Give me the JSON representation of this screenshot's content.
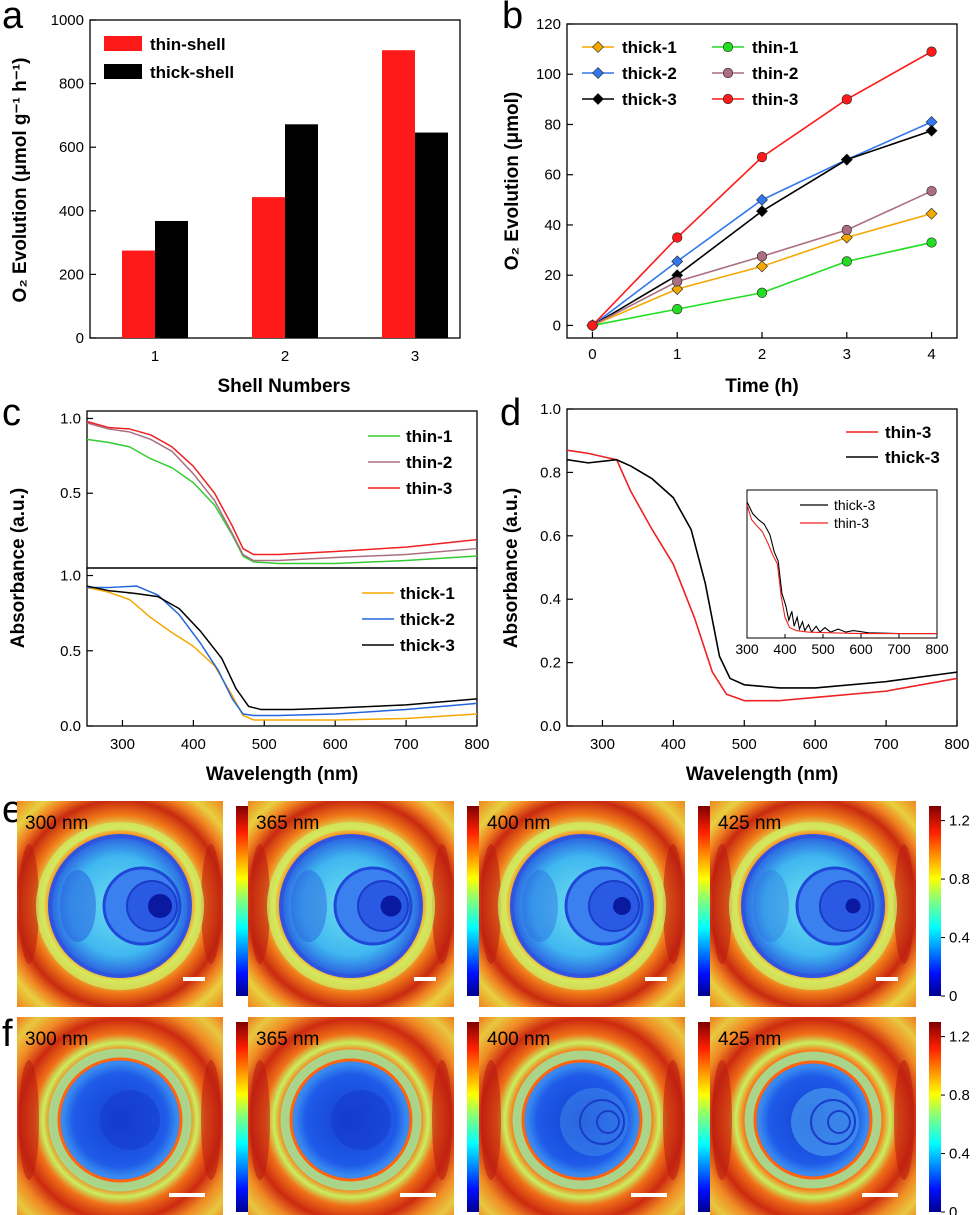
{
  "panel_labels": [
    "a",
    "b",
    "c",
    "d",
    "e",
    "f"
  ],
  "chart_data": [
    {
      "panel": "a",
      "type": "bar",
      "xlabel": "Shell Numbers",
      "ylabel": "O₂ Evolution (μmol g⁻¹ h⁻¹)",
      "categories": [
        "1",
        "2",
        "3"
      ],
      "ylim": [
        0,
        1000
      ],
      "yticks": [
        "0",
        "200",
        "400",
        "600",
        "800",
        "1000"
      ],
      "legend_position": "top-left",
      "series": [
        {
          "name": "thin-shell",
          "color": "#ff1a1a",
          "values": [
            275,
            443,
            905
          ]
        },
        {
          "name": "thick-shell",
          "color": "#000000",
          "values": [
            368,
            672,
            646
          ]
        }
      ]
    },
    {
      "panel": "b",
      "type": "line",
      "xlabel": "Time (h)",
      "ylabel": "O₂ Evolution (μmol)",
      "x": [
        0,
        1,
        2,
        3,
        4
      ],
      "xlim": [
        -0.3,
        4.3
      ],
      "ylim": [
        -5,
        120
      ],
      "xticks": [
        "0",
        "1",
        "2",
        "3",
        "4"
      ],
      "yticks": [
        "0",
        "20",
        "40",
        "60",
        "80",
        "100",
        "120"
      ],
      "legend_position": "top-left",
      "series": [
        {
          "name": "thick-1",
          "color": "#f5a800",
          "marker": "diamond",
          "values": [
            0,
            14.5,
            23.5,
            35,
            44.5
          ]
        },
        {
          "name": "thick-2",
          "color": "#3377ee",
          "marker": "diamond",
          "values": [
            0,
            25.5,
            50,
            66,
            81
          ]
        },
        {
          "name": "thick-3",
          "color": "#000000",
          "marker": "diamond",
          "values": [
            0,
            20,
            45.5,
            66,
            77.5
          ]
        },
        {
          "name": "thin-1",
          "color": "#22dd22",
          "marker": "circle",
          "values": [
            0,
            6.5,
            13,
            25.5,
            33
          ]
        },
        {
          "name": "thin-2",
          "color": "#aa6e80",
          "marker": "circle",
          "values": [
            0,
            17.5,
            27.5,
            38,
            53.5
          ]
        },
        {
          "name": "thin-3",
          "color": "#ff1a1a",
          "marker": "circle",
          "values": [
            0,
            35,
            67,
            90,
            109
          ]
        }
      ]
    },
    {
      "panel": "c",
      "type": "line",
      "xlabel": "Wavelength (nm)",
      "ylabel": "Absorbance (a.u.)",
      "xlim": [
        250,
        800
      ],
      "xticks": [
        "300",
        "400",
        "500",
        "600",
        "700",
        "800"
      ],
      "top": {
        "yticks": [
          "0.5",
          "1.0"
        ],
        "ylim": [
          0.0,
          1.05
        ],
        "series": [
          {
            "name": "thin-1",
            "color": "#33cc33",
            "points": [
              [
                250,
                0.86
              ],
              [
                280,
                0.84
              ],
              [
                310,
                0.81
              ],
              [
                340,
                0.73
              ],
              [
                370,
                0.67
              ],
              [
                400,
                0.57
              ],
              [
                430,
                0.42
              ],
              [
                455,
                0.22
              ],
              [
                470,
                0.08
              ],
              [
                485,
                0.04
              ],
              [
                520,
                0.03
              ],
              [
                600,
                0.03
              ],
              [
                700,
                0.05
              ],
              [
                800,
                0.08
              ]
            ]
          },
          {
            "name": "thin-2",
            "color": "#aa6e80",
            "points": [
              [
                250,
                0.97
              ],
              [
                280,
                0.93
              ],
              [
                310,
                0.91
              ],
              [
                340,
                0.86
              ],
              [
                370,
                0.78
              ],
              [
                400,
                0.63
              ],
              [
                430,
                0.45
              ],
              [
                455,
                0.23
              ],
              [
                470,
                0.09
              ],
              [
                485,
                0.05
              ],
              [
                520,
                0.05
              ],
              [
                600,
                0.07
              ],
              [
                700,
                0.09
              ],
              [
                800,
                0.13
              ]
            ]
          },
          {
            "name": "thin-3",
            "color": "#ee2222",
            "points": [
              [
                250,
                0.98
              ],
              [
                280,
                0.94
              ],
              [
                310,
                0.93
              ],
              [
                340,
                0.89
              ],
              [
                370,
                0.81
              ],
              [
                400,
                0.68
              ],
              [
                430,
                0.5
              ],
              [
                455,
                0.28
              ],
              [
                470,
                0.13
              ],
              [
                485,
                0.09
              ],
              [
                520,
                0.09
              ],
              [
                600,
                0.11
              ],
              [
                700,
                0.14
              ],
              [
                800,
                0.19
              ]
            ]
          }
        ]
      },
      "bottom": {
        "yticks": [
          "0.0",
          "0.5",
          "1.0"
        ],
        "ylim": [
          0.0,
          1.05
        ],
        "series": [
          {
            "name": "thick-1",
            "color": "#f5a800",
            "points": [
              [
                250,
                0.92
              ],
              [
                280,
                0.89
              ],
              [
                310,
                0.84
              ],
              [
                340,
                0.72
              ],
              [
                370,
                0.62
              ],
              [
                400,
                0.53
              ],
              [
                430,
                0.4
              ],
              [
                455,
                0.2
              ],
              [
                470,
                0.07
              ],
              [
                485,
                0.04
              ],
              [
                520,
                0.04
              ],
              [
                600,
                0.04
              ],
              [
                700,
                0.05
              ],
              [
                800,
                0.08
              ]
            ]
          },
          {
            "name": "thick-2",
            "color": "#2266dd",
            "points": [
              [
                250,
                0.92
              ],
              [
                280,
                0.92
              ],
              [
                320,
                0.93
              ],
              [
                350,
                0.87
              ],
              [
                380,
                0.74
              ],
              [
                410,
                0.55
              ],
              [
                435,
                0.37
              ],
              [
                455,
                0.18
              ],
              [
                470,
                0.08
              ],
              [
                485,
                0.07
              ],
              [
                520,
                0.07
              ],
              [
                600,
                0.08
              ],
              [
                700,
                0.11
              ],
              [
                800,
                0.15
              ]
            ]
          },
          {
            "name": "thick-3",
            "color": "#000000",
            "points": [
              [
                250,
                0.93
              ],
              [
                280,
                0.9
              ],
              [
                320,
                0.88
              ],
              [
                350,
                0.86
              ],
              [
                380,
                0.78
              ],
              [
                410,
                0.63
              ],
              [
                440,
                0.45
              ],
              [
                460,
                0.25
              ],
              [
                478,
                0.13
              ],
              [
                495,
                0.11
              ],
              [
                540,
                0.11
              ],
              [
                600,
                0.12
              ],
              [
                700,
                0.14
              ],
              [
                800,
                0.18
              ]
            ]
          }
        ]
      }
    },
    {
      "panel": "d",
      "type": "line",
      "xlabel": "Wavelength (nm)",
      "ylabel": "Absorbance (a.u.)",
      "xlim": [
        250,
        800
      ],
      "ylim": [
        0.0,
        1.0
      ],
      "xticks": [
        "300",
        "400",
        "500",
        "600",
        "700",
        "800"
      ],
      "yticks": [
        "0.0",
        "0.2",
        "0.4",
        "0.6",
        "0.8",
        "1.0"
      ],
      "legend_position": "top-right",
      "series": [
        {
          "name": "thin-3",
          "color": "#ee2222",
          "points": [
            [
              250,
              0.87
            ],
            [
              280,
              0.86
            ],
            [
              320,
              0.84
            ],
            [
              340,
              0.74
            ],
            [
              370,
              0.62
            ],
            [
              400,
              0.51
            ],
            [
              430,
              0.34
            ],
            [
              455,
              0.17
            ],
            [
              475,
              0.1
            ],
            [
              500,
              0.08
            ],
            [
              550,
              0.08
            ],
            [
              600,
              0.09
            ],
            [
              700,
              0.11
            ],
            [
              800,
              0.15
            ]
          ]
        },
        {
          "name": "thick-3",
          "color": "#000000",
          "points": [
            [
              250,
              0.84
            ],
            [
              280,
              0.83
            ],
            [
              320,
              0.84
            ],
            [
              340,
              0.82
            ],
            [
              370,
              0.78
            ],
            [
              400,
              0.72
            ],
            [
              425,
              0.62
            ],
            [
              445,
              0.45
            ],
            [
              465,
              0.22
            ],
            [
              480,
              0.15
            ],
            [
              500,
              0.13
            ],
            [
              550,
              0.12
            ],
            [
              600,
              0.12
            ],
            [
              700,
              0.14
            ],
            [
              800,
              0.17
            ]
          ]
        }
      ],
      "inset": {
        "xlim": [
          300,
          800
        ],
        "xticks": [
          "300",
          "400",
          "500",
          "600",
          "700",
          "800"
        ],
        "series": [
          {
            "name": "thick-3",
            "color": "#000000"
          },
          {
            "name": "thin-3",
            "color": "#ee2222"
          }
        ]
      }
    }
  ],
  "field_maps": {
    "colorbar_ticks": [
      "1.2",
      "0.8",
      "0.4",
      "0"
    ],
    "colorbar_range": [
      0,
      1.3
    ],
    "wavelengths": [
      "300 nm",
      "365 nm",
      "400 nm",
      "425 nm"
    ],
    "row_e": {
      "structure": "core with multiple thin shells",
      "background": "#f07a18"
    },
    "row_f": {
      "structure": "core with thick shells",
      "background": "#f06a14"
    }
  }
}
